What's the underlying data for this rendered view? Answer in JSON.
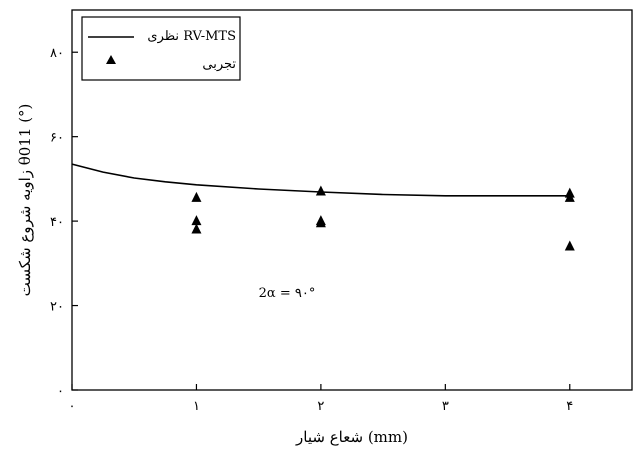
{
  "chart_data": {
    "type": "scatter",
    "xlabel": "شعاع شیار (mm)",
    "ylabel": "زاویه شروع شکست θ011 (°)",
    "xlim": [
      0,
      4.5
    ],
    "ylim": [
      0,
      90
    ],
    "x_ticks": [
      0,
      1,
      2,
      3,
      4
    ],
    "x_tick_labels": [
      "۰",
      "۱",
      "۲",
      "۳",
      "۴"
    ],
    "y_ticks": [
      0,
      20,
      40,
      60,
      80
    ],
    "y_tick_labels": [
      "۰",
      "۲۰",
      "۴۰",
      "۶۰",
      "۸۰"
    ],
    "grid": false,
    "legend_position": "top-left",
    "annotation": "2α = ۹۰°",
    "series": [
      {
        "name": "نظری RV-MTS",
        "kind": "line",
        "color": "#000000",
        "points": [
          [
            0,
            53.5
          ],
          [
            0.25,
            51.6
          ],
          [
            0.5,
            50.2
          ],
          [
            0.75,
            49.3
          ],
          [
            1,
            48.6
          ],
          [
            1.5,
            47.6
          ],
          [
            2,
            46.9
          ],
          [
            2.5,
            46.3
          ],
          [
            3,
            46
          ],
          [
            3.5,
            46
          ],
          [
            4,
            46
          ]
        ]
      },
      {
        "name": "تجربی",
        "kind": "markers",
        "marker": "triangle-up",
        "color": "#000000",
        "points": [
          [
            1,
            45.5
          ],
          [
            1,
            40
          ],
          [
            1,
            38
          ],
          [
            2,
            47
          ],
          [
            2,
            40
          ],
          [
            2,
            39.5
          ],
          [
            4,
            46.5
          ],
          [
            4,
            45.5
          ],
          [
            4,
            34
          ]
        ]
      }
    ]
  }
}
